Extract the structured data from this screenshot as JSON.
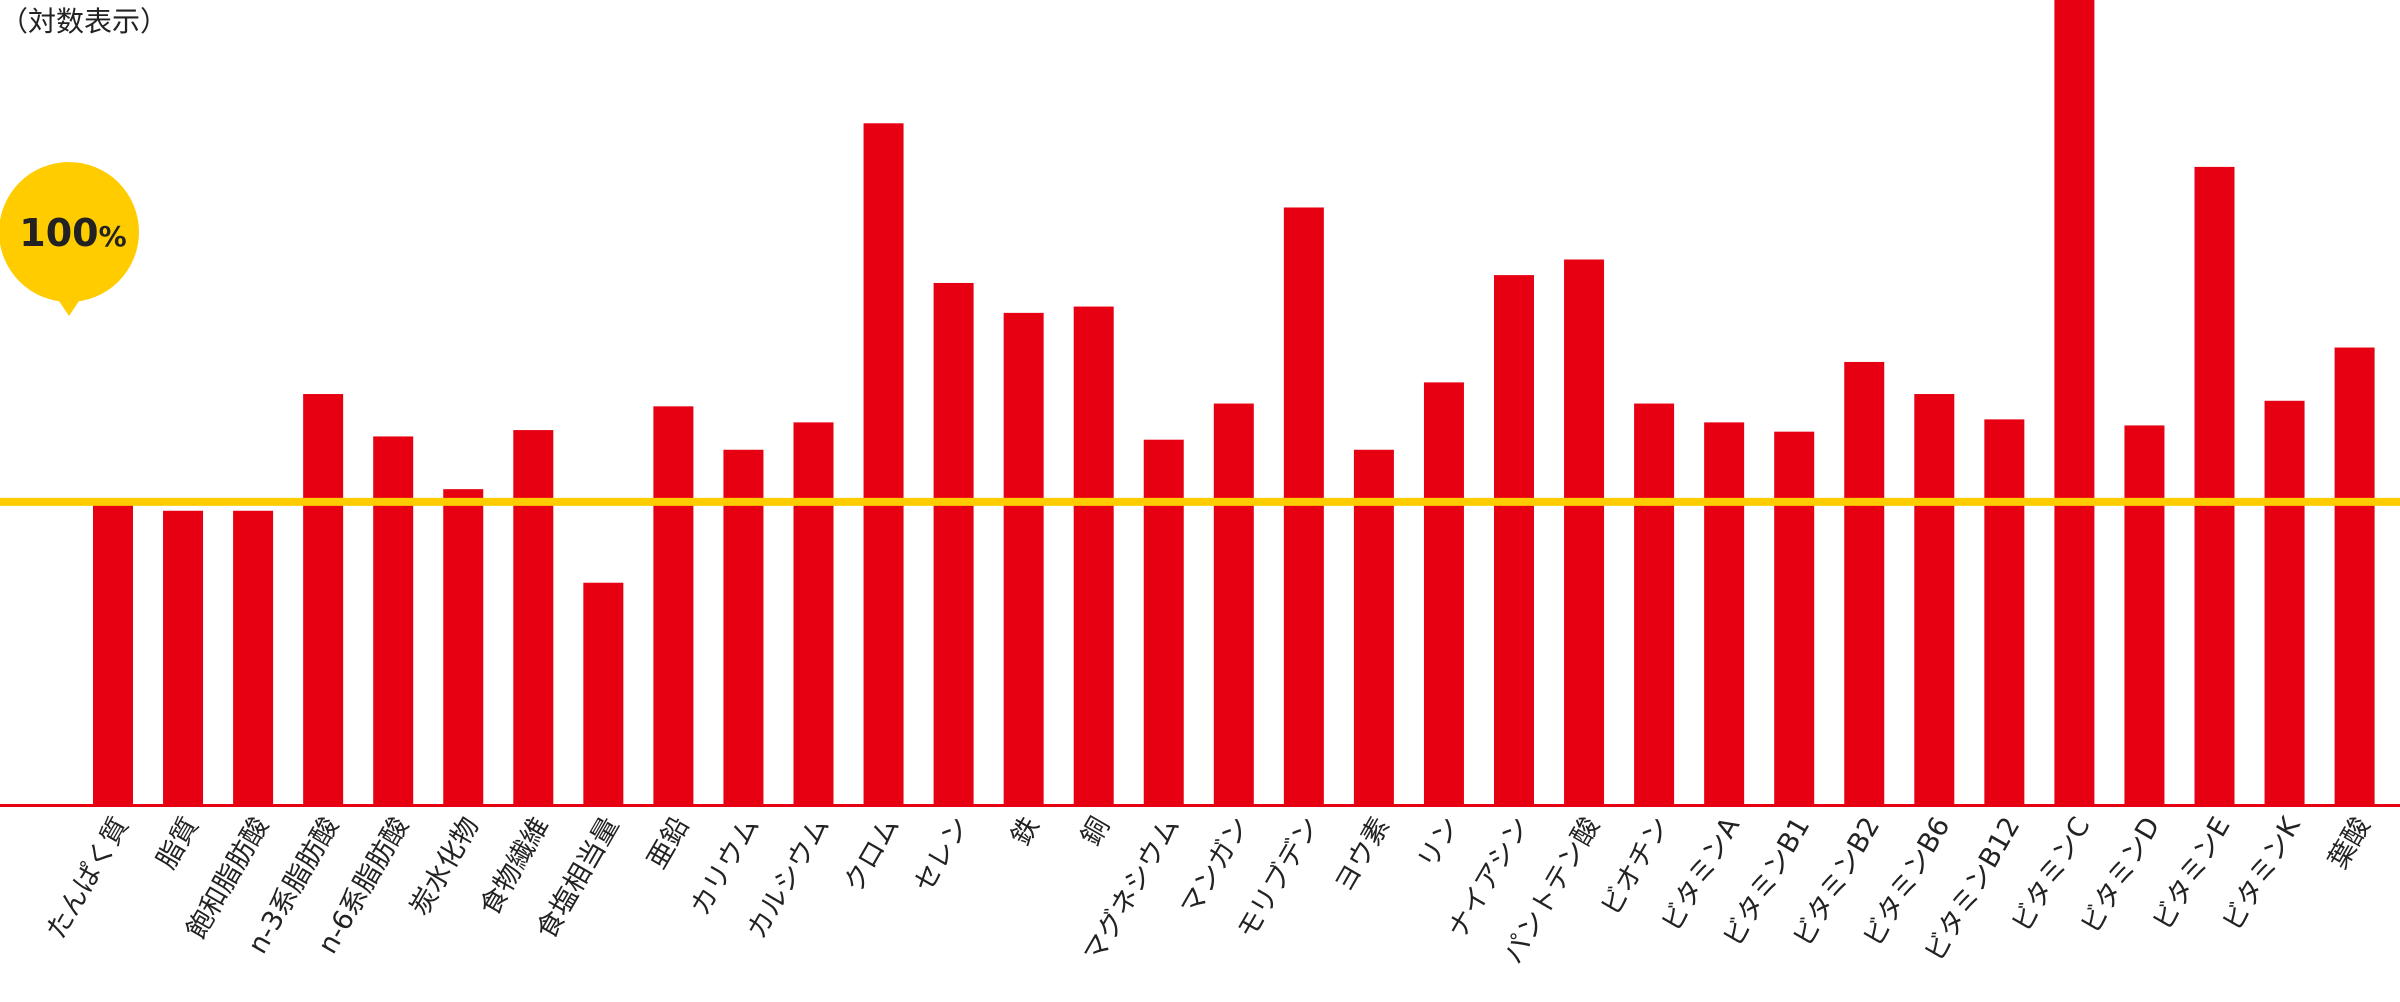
{
  "scale_note": "（対数表示）",
  "colors": {
    "bar": "#e60012",
    "reference": "#ffcc00",
    "axis": "#e60012",
    "label_text": "#222222",
    "badge_text": "#222222"
  },
  "chart_data": {
    "type": "bar",
    "scale": "log",
    "unit": "%",
    "reference_line": {
      "value": 100,
      "label_value": "100",
      "label_unit": "%"
    },
    "categories": [
      "たんぱく質",
      "脂質",
      "飽和脂肪酸",
      "n-3系脂肪酸",
      "n-6系脂肪酸",
      "炭水化物",
      "食物繊維",
      "食塩相当量",
      "亜鉛",
      "カリウム",
      "カルシウム",
      "クロム",
      "セレン",
      "鉄",
      "銅",
      "マグネシウム",
      "マンガン",
      "モリブデン",
      "ヨウ素",
      "リン",
      "ナイアシン",
      "パントテン酸",
      "ビオチン",
      "ビタミンA",
      "ビタミンB1",
      "ビタミンB2",
      "ビタミンB6",
      "ビタミンB12",
      "ビタミンC",
      "ビタミンD",
      "ビタミンE",
      "ビタミンK",
      "葉酸"
    ],
    "values": [
      100,
      96,
      96,
      164,
      135,
      106,
      139,
      69,
      155,
      127,
      144,
      568,
      273,
      238,
      245,
      133,
      157,
      386,
      127,
      173,
      283,
      304,
      157,
      144,
      138,
      190,
      164,
      146,
      1000,
      142,
      465,
      159,
      203
    ],
    "ylim": [
      25,
      1000
    ],
    "grid": false,
    "legend": "none"
  }
}
